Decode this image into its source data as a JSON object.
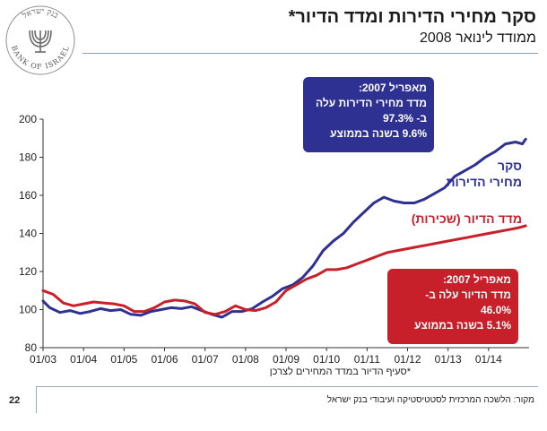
{
  "header": {
    "title": "סקר מחירי הדירות ומדד הדיור*",
    "subtitle": "ממודד לינואר 2008"
  },
  "logo": {
    "hebrew": "בנק ישראל",
    "english": "BANK OF ISRAEL",
    "icon": "menorah-icon"
  },
  "chart_data": {
    "type": "line",
    "title": "סקר מחירי הדירות ומדד הדיור*",
    "subtitle": "ממודד לינואר 2008",
    "xlabel": "",
    "ylabel": "",
    "ylim": [
      80,
      200
    ],
    "yticks": [
      80,
      100,
      120,
      140,
      160,
      180,
      200
    ],
    "xlim": [
      "2003-01",
      "2015-01"
    ],
    "xticks": [
      "01/03",
      "01/04",
      "01/05",
      "01/06",
      "01/07",
      "01/08",
      "01/09",
      "01/10",
      "01/11",
      "01/12",
      "01/13",
      "01/14"
    ],
    "grid": false,
    "series": [
      {
        "name": "סקר מחירי הדירות",
        "color": "#2e3192",
        "points": [
          [
            "2003-01",
            104.5
          ],
          [
            "2003-03",
            101
          ],
          [
            "2003-06",
            98.5
          ],
          [
            "2003-09",
            99.5
          ],
          [
            "2003-12",
            98
          ],
          [
            "2004-03",
            99
          ],
          [
            "2004-06",
            100.5
          ],
          [
            "2004-09",
            99.5
          ],
          [
            "2004-12",
            100
          ],
          [
            "2005-03",
            97.5
          ],
          [
            "2005-06",
            97
          ],
          [
            "2005-09",
            99
          ],
          [
            "2005-12",
            100
          ],
          [
            "2006-03",
            101
          ],
          [
            "2006-06",
            100.5
          ],
          [
            "2006-09",
            101.5
          ],
          [
            "2006-12",
            99.5
          ],
          [
            "2007-03",
            97.5
          ],
          [
            "2007-06",
            96
          ],
          [
            "2007-09",
            99
          ],
          [
            "2007-12",
            99
          ],
          [
            "2008-03",
            100.5
          ],
          [
            "2008-06",
            104
          ],
          [
            "2008-09",
            107
          ],
          [
            "2008-12",
            111
          ],
          [
            "2009-03",
            113
          ],
          [
            "2009-06",
            117
          ],
          [
            "2009-09",
            123
          ],
          [
            "2009-12",
            131
          ],
          [
            "2010-03",
            136
          ],
          [
            "2010-06",
            140
          ],
          [
            "2010-09",
            146
          ],
          [
            "2010-12",
            151
          ],
          [
            "2011-03",
            156
          ],
          [
            "2011-06",
            159
          ],
          [
            "2011-09",
            157
          ],
          [
            "2011-12",
            156
          ],
          [
            "2012-03",
            156
          ],
          [
            "2012-06",
            158
          ],
          [
            "2012-09",
            161
          ],
          [
            "2012-12",
            164
          ],
          [
            "2013-03",
            170
          ],
          [
            "2013-06",
            173
          ],
          [
            "2013-09",
            176
          ],
          [
            "2013-12",
            180
          ],
          [
            "2014-03",
            183
          ],
          [
            "2014-06",
            187
          ],
          [
            "2014-09",
            188
          ],
          [
            "2014-11",
            187
          ],
          [
            "2014-12",
            189.5
          ]
        ]
      },
      {
        "name": "מדד הדיור (שכירות)",
        "color": "#c8202a",
        "points": [
          [
            "2003-01",
            110
          ],
          [
            "2003-04",
            108
          ],
          [
            "2003-07",
            103.5
          ],
          [
            "2003-10",
            102
          ],
          [
            "2004-01",
            103
          ],
          [
            "2004-04",
            104
          ],
          [
            "2004-07",
            103.5
          ],
          [
            "2004-10",
            103
          ],
          [
            "2005-01",
            102
          ],
          [
            "2005-04",
            99
          ],
          [
            "2005-07",
            99
          ],
          [
            "2005-10",
            101
          ],
          [
            "2006-01",
            104
          ],
          [
            "2006-04",
            105
          ],
          [
            "2006-07",
            104.5
          ],
          [
            "2006-10",
            103
          ],
          [
            "2007-01",
            98.5
          ],
          [
            "2007-04",
            97.5
          ],
          [
            "2007-07",
            99
          ],
          [
            "2007-10",
            102
          ],
          [
            "2008-01",
            100
          ],
          [
            "2008-04",
            99.5
          ],
          [
            "2008-07",
            101
          ],
          [
            "2008-10",
            104
          ],
          [
            "2009-01",
            110
          ],
          [
            "2009-04",
            113
          ],
          [
            "2009-07",
            116
          ],
          [
            "2009-10",
            118
          ],
          [
            "2010-01",
            121
          ],
          [
            "2010-04",
            121
          ],
          [
            "2010-07",
            122
          ],
          [
            "2010-10",
            124
          ],
          [
            "2011-01",
            126
          ],
          [
            "2011-04",
            128
          ],
          [
            "2011-07",
            130
          ],
          [
            "2011-10",
            131
          ],
          [
            "2012-01",
            132
          ],
          [
            "2012-04",
            133
          ],
          [
            "2012-07",
            134
          ],
          [
            "2012-10",
            135
          ],
          [
            "2013-01",
            136
          ],
          [
            "2013-04",
            137
          ],
          [
            "2013-07",
            138
          ],
          [
            "2013-10",
            139
          ],
          [
            "2014-01",
            140
          ],
          [
            "2014-04",
            141
          ],
          [
            "2014-07",
            142
          ],
          [
            "2014-10",
            143
          ],
          [
            "2014-12",
            144
          ]
        ]
      }
    ],
    "annotations": {
      "blue_box": [
        "מאפריל 2007:",
        "מדד מחירי הדירות עלה",
        "ב- 97.3%",
        "9.6% בשנה בממוצע"
      ],
      "red_box": [
        "מאפריל 2007:",
        "מדד הדיור עלה ב-",
        "46.0%",
        "5.1% בשנה בממוצע"
      ]
    }
  },
  "series_labels": {
    "blue_line1": "סקר",
    "blue_line2": "מחירי הדירות",
    "red": "מדד הדיור (שכירות)"
  },
  "footnote": "*סעיף הדיור במדד המחירים לצרכן",
  "footer": {
    "page_number": "22",
    "source": "מקור: הלשכה המרכזית לסטטיסטיקה ועיבודי בנק ישראל"
  }
}
